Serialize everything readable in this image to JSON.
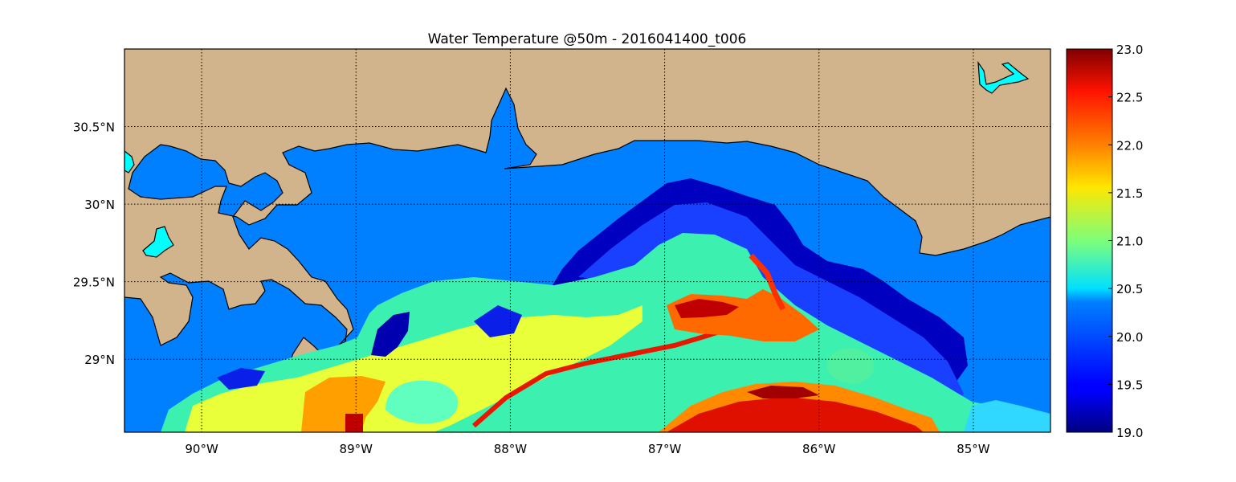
{
  "chart_data": {
    "type": "heatmap",
    "title": "Water Temperature @50m - 2016041400_t006",
    "x_axis": {
      "range": [
        -90.5,
        -84.5
      ],
      "ticks": [
        {
          "value": -90,
          "label": "90°W"
        },
        {
          "value": -89,
          "label": "89°W"
        },
        {
          "value": -88,
          "label": "88°W"
        },
        {
          "value": -87,
          "label": "87°W"
        },
        {
          "value": -86,
          "label": "86°W"
        },
        {
          "value": -85,
          "label": "85°W"
        }
      ]
    },
    "y_axis": {
      "range": [
        28.53,
        31.0
      ],
      "ticks": [
        {
          "value": 29.0,
          "label": "29°N"
        },
        {
          "value": 29.5,
          "label": "29.5°N"
        },
        {
          "value": 30.0,
          "label": "30°N"
        },
        {
          "value": 30.5,
          "label": "30.5°N"
        }
      ]
    },
    "grid": "dotted",
    "colorbar": {
      "colormap": "jet",
      "range": [
        19.0,
        23.0
      ],
      "ticks": [
        "19.0",
        "19.5",
        "20.0",
        "20.5",
        "21.0",
        "21.5",
        "22.0",
        "22.5",
        "23.0"
      ]
    },
    "colors": {
      "land": "#d2b48c",
      "shelf_water": "#0080ff",
      "lake": "#00ffff"
    }
  }
}
